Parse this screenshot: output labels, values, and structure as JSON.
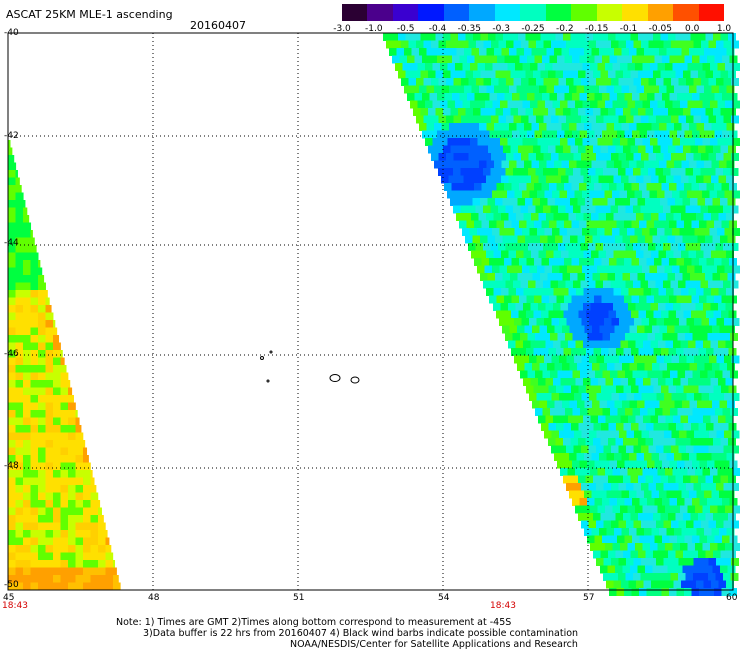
{
  "header": {
    "title": "ASCAT 25KM MLE-1 ascending",
    "date": "20160407"
  },
  "colorbar": {
    "labels": [
      "-3.0",
      "-1.0",
      "-0.5",
      "-0.4",
      "-0.35",
      "-0.3",
      "-0.25",
      "-0.2",
      "-0.15",
      "-0.1",
      "-0.05",
      "0.0",
      "1.0"
    ],
    "colors": [
      "#2b0033",
      "#4b008c",
      "#3a00d0",
      "#0018ff",
      "#0060ff",
      "#00a8ff",
      "#00e8ff",
      "#00ffc0",
      "#00ff40",
      "#60ff00",
      "#c8ff00",
      "#ffe000",
      "#ffa000",
      "#ff5000",
      "#ff1000"
    ]
  },
  "map": {
    "lon_labels": [
      "45",
      "48",
      "51",
      "54",
      "57",
      "60"
    ],
    "lat_labels": [
      "-40",
      "-42",
      "-44",
      "-46",
      "-48",
      "-50"
    ],
    "time_labels": [
      "18:43",
      "18:43"
    ],
    "grid": true
  },
  "notes": {
    "line1": "Note: 1) Times are GMT 2)Times along bottom correspond to measurement at -45S",
    "line2": "3)Data buffer is 22 hrs from 20160407 4) Black wind barbs indicate possible contamination",
    "line3": "NOAA/NESDIS/Center for Satellite Applications and Research"
  }
}
